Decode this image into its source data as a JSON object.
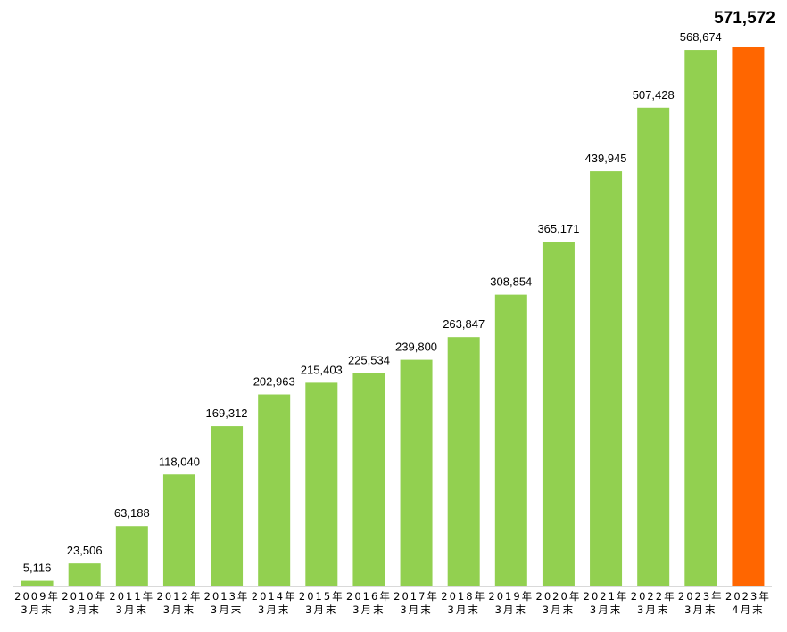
{
  "chart_data": {
    "type": "bar",
    "categories": [
      [
        "2009年",
        "3月末"
      ],
      [
        "2010年",
        "3月末"
      ],
      [
        "2011年",
        "3月末"
      ],
      [
        "2012年",
        "3月末"
      ],
      [
        "2013年",
        "3月末"
      ],
      [
        "2014年",
        "3月末"
      ],
      [
        "2015年",
        "3月末"
      ],
      [
        "2016年",
        "3月末"
      ],
      [
        "2017年",
        "3月末"
      ],
      [
        "2018年",
        "3月末"
      ],
      [
        "2019年",
        "3月末"
      ],
      [
        "2020年",
        "3月末"
      ],
      [
        "2021年",
        "3月末"
      ],
      [
        "2022年",
        "3月末"
      ],
      [
        "2023年",
        "3月末"
      ],
      [
        "2023年",
        "4月末"
      ]
    ],
    "values": [
      5116,
      23506,
      63188,
      118040,
      169312,
      202963,
      215403,
      225534,
      239800,
      263847,
      308854,
      365171,
      439945,
      507428,
      568674,
      571572
    ],
    "value_labels": [
      "5,116",
      "23,506",
      "63,188",
      "118,040",
      "169,312",
      "202,963",
      "215,403",
      "225,534",
      "239,800",
      "263,847",
      "308,854",
      "365,171",
      "439,945",
      "507,428",
      "568,674",
      "571,572"
    ],
    "highlight_index": 15,
    "title": "",
    "xlabel": "",
    "ylabel": "",
    "ylim": [
      0,
      571572
    ],
    "grid": false,
    "legend": "none",
    "colors": {
      "bar": "#92d050",
      "highlight_bar": "#ff6600",
      "highlight_label": "#ff6600",
      "axis": "#d9d9d9"
    }
  }
}
